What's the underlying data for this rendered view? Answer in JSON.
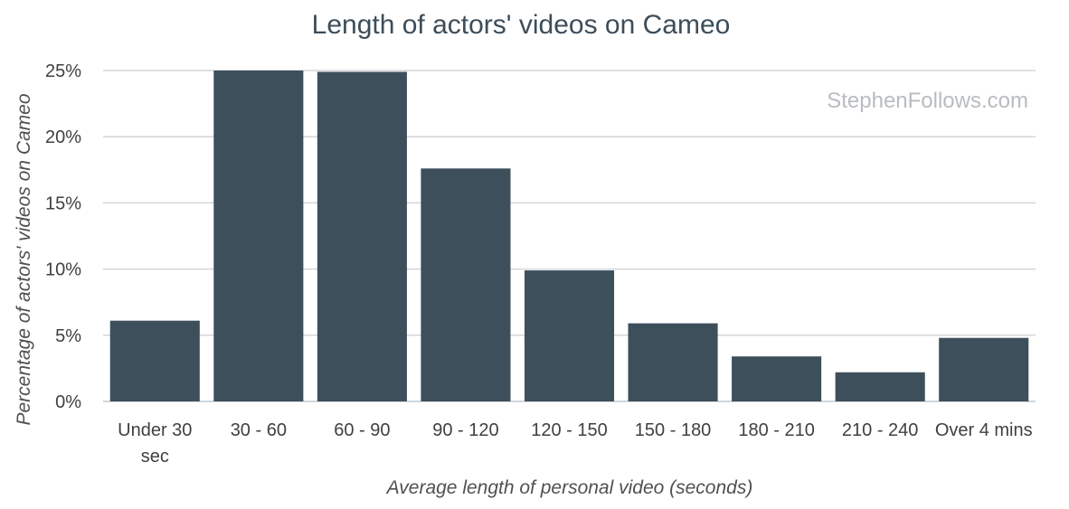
{
  "chart_data": {
    "type": "bar",
    "title": "Length of actors' videos on Cameo",
    "xlabel": "Average length of personal video (seconds)",
    "ylabel": "Percentage of actors' videos on Cameo",
    "categories": [
      [
        "Under 30",
        "sec"
      ],
      [
        "30 - 60"
      ],
      [
        "60 - 90"
      ],
      [
        "90 - 120"
      ],
      [
        "120 - 150"
      ],
      [
        "150 - 180"
      ],
      [
        "180 - 210"
      ],
      [
        "210 - 240"
      ],
      [
        "Over 4 mins"
      ]
    ],
    "values": [
      6.1,
      25.0,
      24.9,
      17.6,
      9.9,
      5.9,
      3.4,
      2.2,
      4.8
    ],
    "ylim": [
      0,
      25
    ],
    "yticks": [
      "0%",
      "5%",
      "10%",
      "15%",
      "20%",
      "25%"
    ],
    "ytick_values": [
      0,
      5,
      10,
      15,
      20,
      25
    ],
    "grid": true,
    "legend": "none",
    "bar_color": "#3e4f5c",
    "grid_color": "#d3d6d9",
    "watermark": "StephenFollows.com"
  }
}
